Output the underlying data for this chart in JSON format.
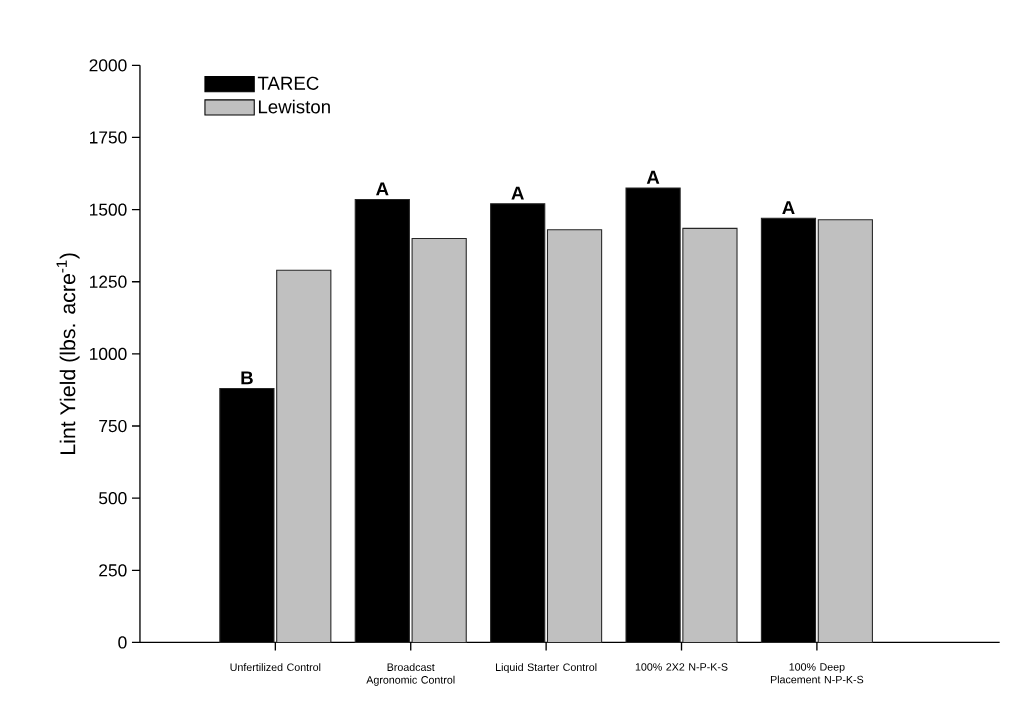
{
  "chart_data": {
    "type": "bar",
    "ylabel": "Lint Yield (lbs. acre$^{-1}$)",
    "categories": [
      "Unfertilized Control",
      "Broadcast Agronomic Control",
      "Liquid Starter Control",
      "100% 2X2 N-P-K-S",
      "100% Deep Placement N-P-K-S"
    ],
    "series": [
      {
        "name": "TAREC",
        "color": "#000000",
        "values": [
          880,
          1535,
          1520,
          1575,
          1470
        ]
      },
      {
        "name": "Lewiston",
        "color": "#c0c0c0",
        "values": [
          1290,
          1400,
          1430,
          1435,
          1465
        ]
      }
    ],
    "ylim": [
      0,
      2000
    ],
    "yticks": [
      0,
      250,
      500,
      750,
      1000,
      1250,
      1500,
      1750,
      2000
    ],
    "legend": "top left",
    "grid": false,
    "annotations": [
      {
        "text": "B",
        "x": "Unfertilized Control",
        "y": 880
      },
      {
        "text": "A",
        "x": "Broadcast Agronomic Control",
        "y": 1535
      },
      {
        "text": "A",
        "x": "Liquid Starter Control",
        "y": 1520
      },
      {
        "text": "A",
        "x": "100% 2X2 N-P-K-S",
        "y": 1575
      },
      {
        "text": "A",
        "x": "100% Deep Placement N-P-K-S",
        "y": 1470
      }
    ]
  }
}
